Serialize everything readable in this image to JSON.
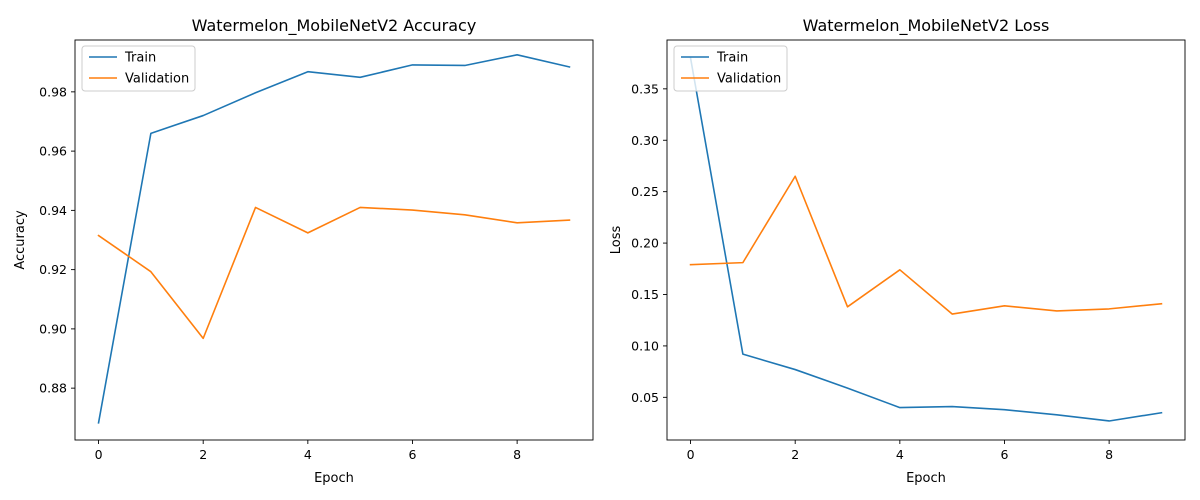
{
  "chart_data": [
    {
      "type": "line",
      "title": "Watermelon_MobileNetV2 Accuracy",
      "xlabel": "Epoch",
      "ylabel": "Accuracy",
      "x": [
        0,
        1,
        2,
        3,
        4,
        5,
        6,
        7,
        8,
        9
      ],
      "xlim": [
        -0.45,
        9.45
      ],
      "ylim": [
        0.8625,
        0.9975
      ],
      "xticks": [
        0,
        2,
        4,
        6,
        8
      ],
      "yticks": [
        0.88,
        0.9,
        0.92,
        0.94,
        0.96,
        0.98
      ],
      "xtick_labels": [
        "0",
        "2",
        "4",
        "6",
        "8"
      ],
      "ytick_labels": [
        "0.88",
        "0.90",
        "0.92",
        "0.94",
        "0.96",
        "0.98"
      ],
      "grid": false,
      "legend_position": "upper-left",
      "series": [
        {
          "name": "Train",
          "color": "#1f77b4",
          "values": [
            0.8683,
            0.966,
            0.972,
            0.9797,
            0.9868,
            0.9849,
            0.9891,
            0.9889,
            0.9925,
            0.9884
          ]
        },
        {
          "name": "Validation",
          "color": "#ff7f0e",
          "values": [
            0.9315,
            0.9193,
            0.8968,
            0.941,
            0.9324,
            0.941,
            0.9401,
            0.9385,
            0.9358,
            0.9367
          ]
        }
      ]
    },
    {
      "type": "line",
      "title": "Watermelon_MobileNetV2 Loss",
      "xlabel": "Epoch",
      "ylabel": "Loss",
      "x": [
        0,
        1,
        2,
        3,
        4,
        5,
        6,
        7,
        8,
        9
      ],
      "xlim": [
        -0.45,
        9.45
      ],
      "ylim": [
        0.0085,
        0.3975
      ],
      "xticks": [
        0,
        2,
        4,
        6,
        8
      ],
      "yticks": [
        0.05,
        0.1,
        0.15,
        0.2,
        0.25,
        0.3,
        0.35
      ],
      "xtick_labels": [
        "0",
        "2",
        "4",
        "6",
        "8"
      ],
      "ytick_labels": [
        "0.05",
        "0.10",
        "0.15",
        "0.20",
        "0.25",
        "0.30",
        "0.35"
      ],
      "grid": false,
      "legend_position": "upper-left",
      "series": [
        {
          "name": "Train",
          "color": "#1f77b4",
          "values": [
            0.38,
            0.092,
            0.077,
            0.059,
            0.04,
            0.041,
            0.038,
            0.033,
            0.027,
            0.035
          ]
        },
        {
          "name": "Validation",
          "color": "#ff7f0e",
          "values": [
            0.179,
            0.181,
            0.265,
            0.138,
            0.174,
            0.131,
            0.139,
            0.134,
            0.136,
            0.141
          ]
        }
      ]
    }
  ]
}
